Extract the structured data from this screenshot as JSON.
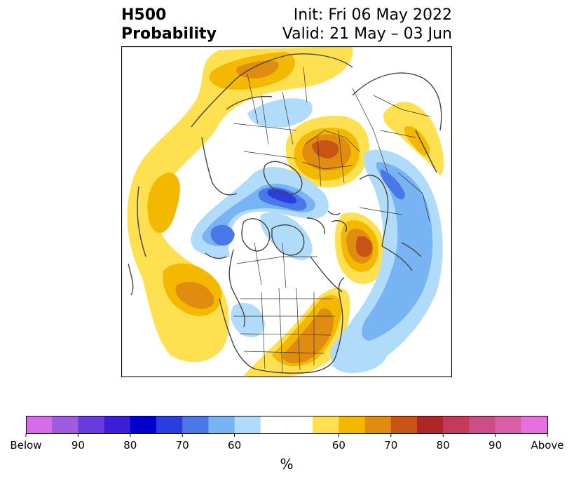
{
  "header": {
    "title_line1": "H500",
    "title_line2": "Probability",
    "init": "Init: Fri 06 May 2022",
    "valid": "Valid: 21 May – 03 Jun"
  },
  "colorbar": {
    "unit": "%",
    "colors": [
      "#d56ce8",
      "#a05ce0",
      "#6a3ce0",
      "#3a1ed8",
      "#0000cc",
      "#2a3ee0",
      "#4a78e8",
      "#78b4f4",
      "#b0dcfa",
      "#ffffff",
      "#ffffff",
      "#ffe050",
      "#f4b800",
      "#e08c10",
      "#c85416",
      "#b02626",
      "#c43a5a",
      "#cc4e86",
      "#dc5ea8",
      "#e870dc"
    ],
    "tick_labels": [
      {
        "label": "Below",
        "index": 0
      },
      {
        "label": "90",
        "index": 2
      },
      {
        "label": "80",
        "index": 4
      },
      {
        "label": "70",
        "index": 6
      },
      {
        "label": "60",
        "index": 8
      },
      {
        "label": "60",
        "index": 12
      },
      {
        "label": "70",
        "index": 14
      },
      {
        "label": "80",
        "index": 16
      },
      {
        "label": "90",
        "index": 18
      },
      {
        "label": "Above",
        "index": 20
      }
    ]
  }
}
